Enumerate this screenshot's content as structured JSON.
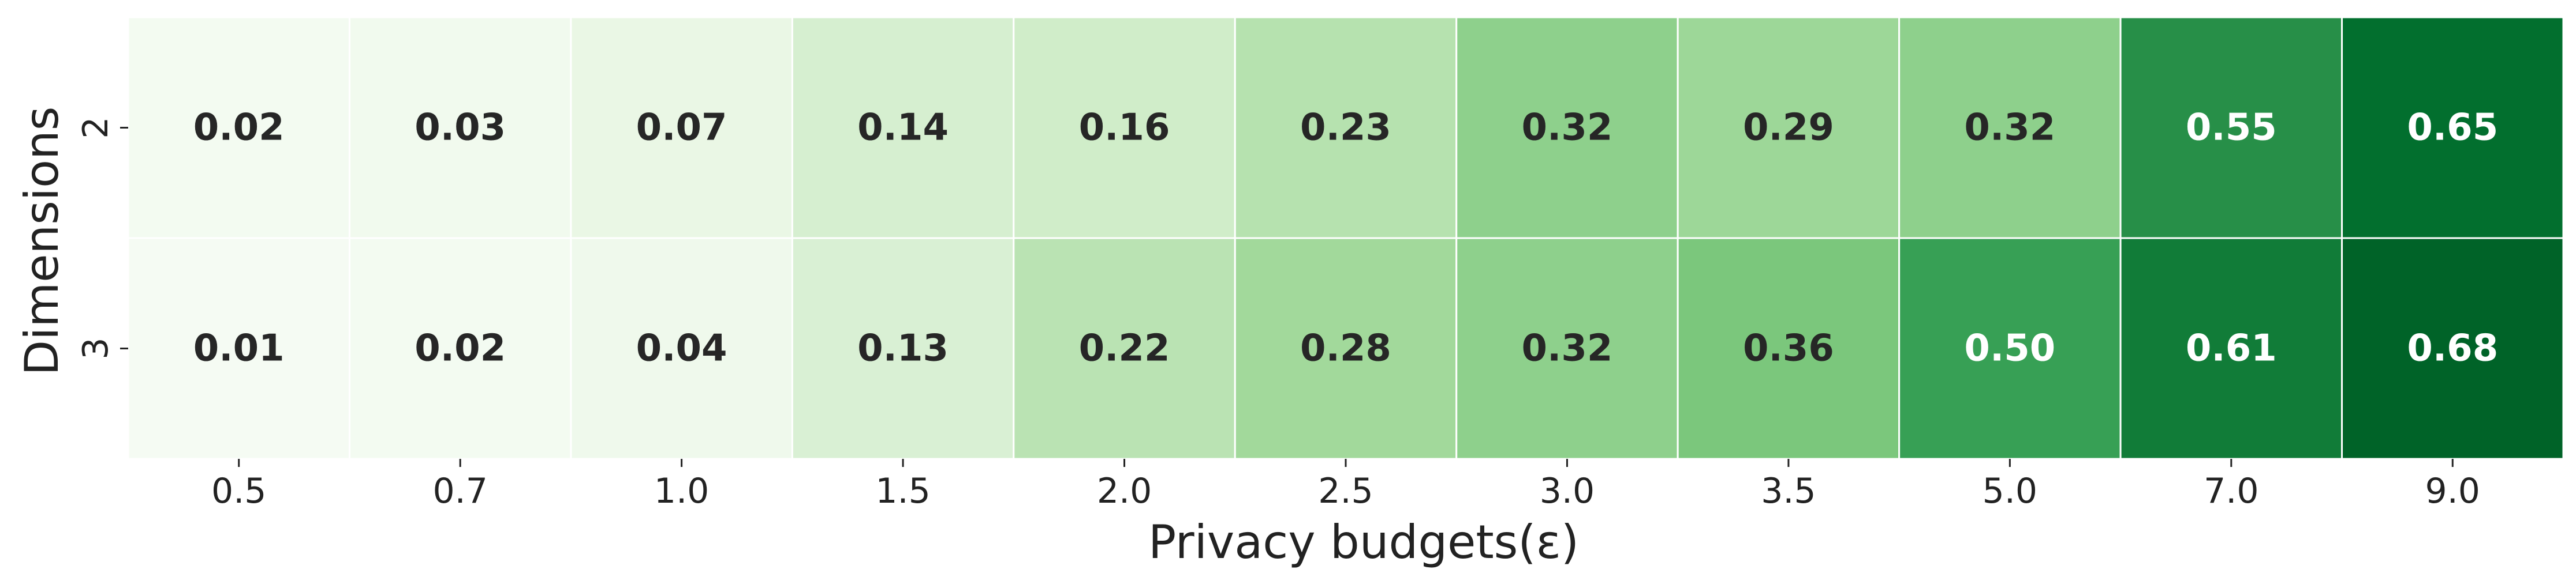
{
  "chart_data": {
    "type": "heatmap",
    "title": "",
    "xlabel": "Privacy budgets(ε)",
    "ylabel": "Dimensions",
    "x": [
      "0.5",
      "0.7",
      "1.0",
      "1.5",
      "2.0",
      "2.5",
      "3.0",
      "3.5",
      "5.0",
      "7.0",
      "9.0"
    ],
    "y": [
      "2",
      "3"
    ],
    "values": [
      [
        0.02,
        0.03,
        0.07,
        0.14,
        0.16,
        0.23,
        0.32,
        0.29,
        0.32,
        0.55,
        0.65
      ],
      [
        0.01,
        0.02,
        0.04,
        0.13,
        0.22,
        0.28,
        0.32,
        0.36,
        0.5,
        0.61,
        0.68
      ]
    ],
    "colormap": "Greens",
    "vmin": 0.0,
    "vmax": 0.75,
    "cell_border_color": "#ffffff",
    "dark_text_color": "#262626",
    "light_text_color": "#ffffff",
    "annotated": true,
    "colorbar": false
  }
}
